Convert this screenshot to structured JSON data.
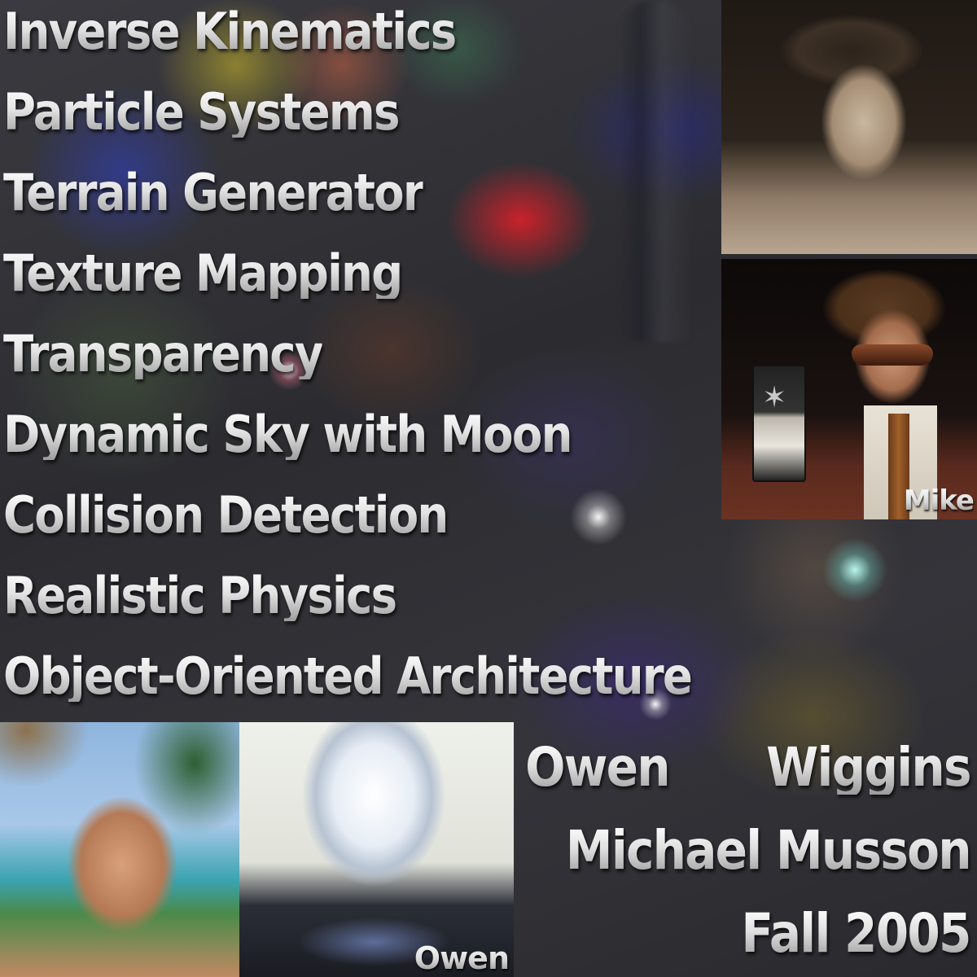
{
  "features": [
    "Inverse Kinematics",
    "Particle Systems",
    "Terrain Generator",
    "Texture Mapping",
    "Transparency",
    "Dynamic Sky with Moon",
    "Collision Detection",
    "Realistic Physics",
    "Object-Oriented Architecture"
  ],
  "credits": {
    "owen_first": "Owen",
    "owen_last": "Wiggins",
    "michael": "Michael Musson",
    "term": "Fall 2005"
  },
  "photos": {
    "mid_tag": "Mike",
    "bottom_tag": "Owen"
  }
}
